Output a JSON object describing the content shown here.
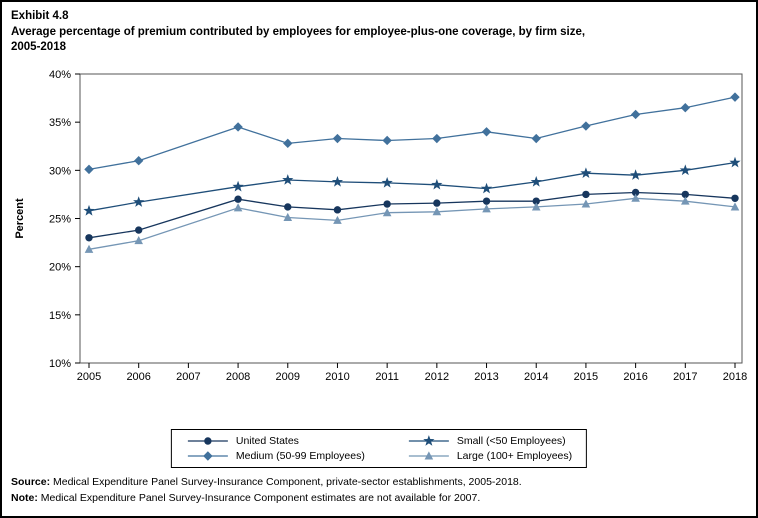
{
  "header": {
    "exhibit": "Exhibit 4.8",
    "title_lines": [
      "Average percentage of premium contributed by employees for employee-plus-one coverage, by firm size,",
      "2005-2018"
    ]
  },
  "chart_data": {
    "type": "line",
    "title": "Average percentage of premium contributed by employees for employee-plus-one coverage, by firm size, 2005-2018",
    "ylabel": "Percent",
    "ylim": [
      10,
      40
    ],
    "yticks": [
      10,
      15,
      20,
      25,
      30,
      35,
      40
    ],
    "ytick_suffix": "%",
    "grid": "off",
    "legend_position": "bottom",
    "x": [
      2005,
      2006,
      2007,
      2008,
      2009,
      2010,
      2011,
      2012,
      2013,
      2014,
      2015,
      2016,
      2017,
      2018
    ],
    "missing_year_note": "2007 estimates not available",
    "series": [
      {
        "name": "United States",
        "marker": "circle",
        "color": "#17365d",
        "values": [
          23.0,
          23.8,
          null,
          27.0,
          26.2,
          25.9,
          26.5,
          26.6,
          26.8,
          26.8,
          27.5,
          27.7,
          27.5,
          27.1
        ]
      },
      {
        "name": "Small (<50 Employees)",
        "marker": "star",
        "color": "#1f4e79",
        "values": [
          25.8,
          26.7,
          null,
          28.3,
          29.0,
          28.8,
          28.7,
          28.5,
          28.1,
          28.8,
          29.7,
          29.5,
          30.0,
          30.8
        ]
      },
      {
        "name": "Medium (50-99 Employees)",
        "marker": "diamond",
        "color": "#41719c",
        "values": [
          30.1,
          31.0,
          null,
          34.5,
          32.8,
          33.3,
          33.1,
          33.3,
          34.0,
          33.3,
          34.6,
          35.8,
          36.5,
          37.6
        ]
      },
      {
        "name": "Large (100+ Employees)",
        "marker": "triangle",
        "color": "#7596b5",
        "values": [
          21.8,
          22.7,
          null,
          26.1,
          25.1,
          24.8,
          25.6,
          25.7,
          26.0,
          26.2,
          26.5,
          27.1,
          26.8,
          26.2
        ]
      }
    ]
  },
  "footer": {
    "source_label": "Source:",
    "source_text": " Medical Expenditure Panel Survey-Insurance Component, private-sector establishments, 2005-2018.",
    "note_label": "Note:",
    "note_text": " Medical Expenditure Panel Survey-Insurance Component estimates are not available for 2007."
  }
}
